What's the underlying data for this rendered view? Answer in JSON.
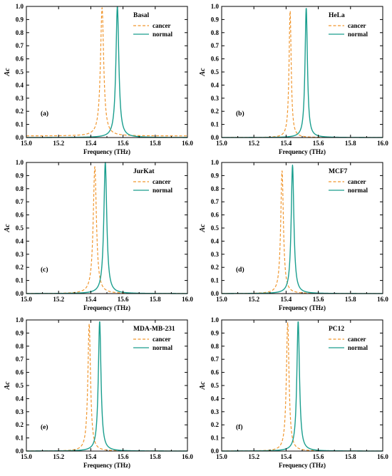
{
  "colors": {
    "cancer": "#f0962e",
    "normal": "#1a9e8e"
  },
  "chart_data": [
    {
      "type": "line",
      "title": "Basal",
      "panel_label": "(a)",
      "xlabel": "Frequency (THz)",
      "ylabel": "Ac",
      "xlim": [
        15.0,
        16.0
      ],
      "ylim": [
        0.0,
        1.0
      ],
      "xticks": [
        15.0,
        15.2,
        15.4,
        15.6,
        15.8,
        16.0
      ],
      "yticks": [
        0.0,
        0.1,
        0.2,
        0.3,
        0.4,
        0.5,
        0.6,
        0.7,
        0.8,
        0.9,
        1.0
      ],
      "legend_position": "top-right",
      "series": [
        {
          "name": "cancer",
          "style": "dashed",
          "peak_x": 15.47,
          "peak_y": 0.99,
          "halfwidth": 0.012,
          "base": 0.012
        },
        {
          "name": "normal",
          "style": "solid",
          "peak_x": 15.565,
          "peak_y": 1.0,
          "halfwidth": 0.011,
          "base": 0.0
        }
      ]
    },
    {
      "type": "line",
      "title": "HeLa",
      "panel_label": "(b)",
      "xlabel": "Frequency (THz)",
      "ylabel": "Ac",
      "xlim": [
        15.0,
        16.0
      ],
      "ylim": [
        0.0,
        1.0
      ],
      "xticks": [
        15.0,
        15.2,
        15.4,
        15.6,
        15.8,
        16.0
      ],
      "yticks": [
        0.0,
        0.1,
        0.2,
        0.3,
        0.4,
        0.5,
        0.6,
        0.7,
        0.8,
        0.9,
        1.0
      ],
      "legend_position": "top-right",
      "series": [
        {
          "name": "cancer",
          "style": "dashed",
          "peak_x": 15.425,
          "peak_y": 0.97,
          "halfwidth": 0.008,
          "base": 0.0
        },
        {
          "name": "normal",
          "style": "solid",
          "peak_x": 15.525,
          "peak_y": 0.99,
          "halfwidth": 0.009,
          "base": 0.0
        }
      ]
    },
    {
      "type": "line",
      "title": "JurKat",
      "panel_label": "(c)",
      "xlabel": "Frequency (THz)",
      "ylabel": "Ac",
      "xlim": [
        15.0,
        16.0
      ],
      "ylim": [
        0.0,
        1.0
      ],
      "xticks": [
        15.0,
        15.2,
        15.4,
        15.6,
        15.8,
        16.0
      ],
      "yticks": [
        0.0,
        0.1,
        0.2,
        0.3,
        0.4,
        0.5,
        0.6,
        0.7,
        0.8,
        0.9,
        1.0
      ],
      "legend_position": "top-right",
      "series": [
        {
          "name": "cancer",
          "style": "dashed",
          "peak_x": 15.425,
          "peak_y": 0.97,
          "halfwidth": 0.012,
          "base": 0.0
        },
        {
          "name": "normal",
          "style": "solid",
          "peak_x": 15.49,
          "peak_y": 1.0,
          "halfwidth": 0.011,
          "base": 0.0
        }
      ]
    },
    {
      "type": "line",
      "title": "MCF7",
      "panel_label": "(d)",
      "xlabel": "Frequency (THz)",
      "ylabel": "Ac",
      "xlim": [
        15.0,
        16.0
      ],
      "ylim": [
        0.0,
        1.0
      ],
      "xticks": [
        15.0,
        15.2,
        15.4,
        15.6,
        15.8,
        16.0
      ],
      "yticks": [
        0.0,
        0.1,
        0.2,
        0.3,
        0.4,
        0.5,
        0.6,
        0.7,
        0.8,
        0.9,
        1.0
      ],
      "legend_position": "top-right",
      "series": [
        {
          "name": "cancer",
          "style": "dashed",
          "peak_x": 15.375,
          "peak_y": 0.94,
          "halfwidth": 0.01,
          "base": 0.0
        },
        {
          "name": "normal",
          "style": "solid",
          "peak_x": 15.44,
          "peak_y": 0.98,
          "halfwidth": 0.01,
          "base": 0.0
        }
      ]
    },
    {
      "type": "line",
      "title": "MDA-MB-231",
      "panel_label": "(e)",
      "xlabel": "Frequency (THz)",
      "ylabel": "Ac",
      "xlim": [
        15.0,
        16.0
      ],
      "ylim": [
        0.0,
        1.0
      ],
      "xticks": [
        15.0,
        15.2,
        15.4,
        15.6,
        15.8,
        16.0
      ],
      "yticks": [
        0.0,
        0.1,
        0.2,
        0.3,
        0.4,
        0.5,
        0.6,
        0.7,
        0.8,
        0.9,
        1.0
      ],
      "legend_position": "top-right",
      "series": [
        {
          "name": "cancer",
          "style": "dashed",
          "peak_x": 15.39,
          "peak_y": 0.97,
          "halfwidth": 0.01,
          "base": 0.0
        },
        {
          "name": "normal",
          "style": "solid",
          "peak_x": 15.455,
          "peak_y": 0.99,
          "halfwidth": 0.01,
          "base": 0.0
        }
      ]
    },
    {
      "type": "line",
      "title": "PC12",
      "panel_label": "(f)",
      "xlabel": "Frequency (THz)",
      "ylabel": "Ac",
      "xlim": [
        15.0,
        16.0
      ],
      "ylim": [
        0.0,
        1.0
      ],
      "xticks": [
        15.0,
        15.2,
        15.4,
        15.6,
        15.8,
        16.0
      ],
      "yticks": [
        0.0,
        0.1,
        0.2,
        0.3,
        0.4,
        0.5,
        0.6,
        0.7,
        0.8,
        0.9,
        1.0
      ],
      "legend_position": "top-right",
      "series": [
        {
          "name": "cancer",
          "style": "dashed",
          "peak_x": 15.41,
          "peak_y": 0.98,
          "halfwidth": 0.01,
          "base": 0.0
        },
        {
          "name": "normal",
          "style": "solid",
          "peak_x": 15.475,
          "peak_y": 0.99,
          "halfwidth": 0.01,
          "base": 0.0
        }
      ]
    }
  ]
}
